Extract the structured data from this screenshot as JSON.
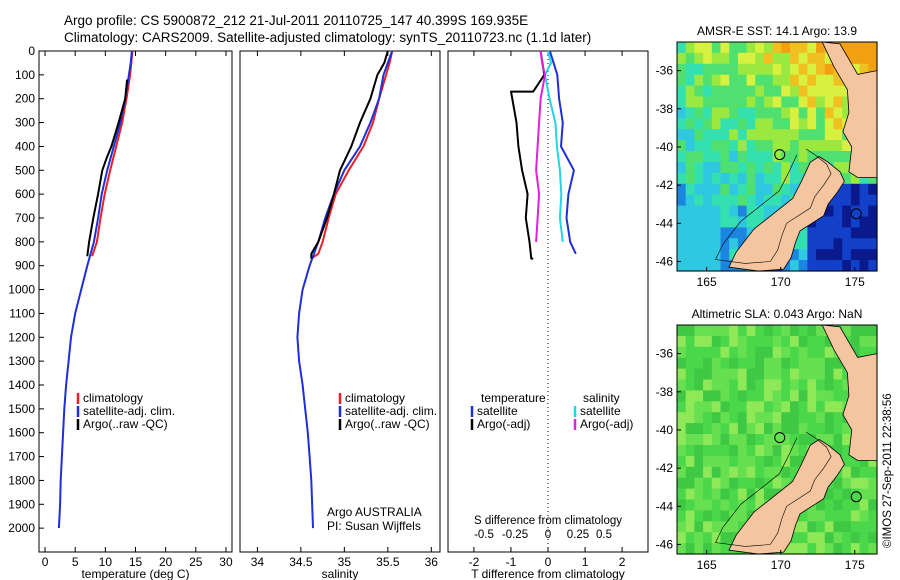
{
  "header": {
    "line1": "Argo profile: CS 5900872_212 21-Jul-2011 20110725_147 40.399S 169.935E",
    "line2": "Climatology: CARS2009. Satellite-adjusted climatology: synTS_20110723.nc (1.1d later)"
  },
  "credit": "©IMOS 27-Sep-2011 22:38:56",
  "colors": {
    "climatology": "#e8202a",
    "satellite": "#1f2fd8",
    "argo": "#000000",
    "satellite_s": "#22d4e4",
    "argo_s": "#e020e0"
  },
  "chart_data": [
    {
      "id": "temperature",
      "type": "line",
      "xlabel": "temperature (deg C)",
      "xlim": [
        -1,
        31
      ],
      "ylim": [
        2100,
        0
      ],
      "xticks": [
        "0",
        "5",
        "10",
        "15",
        "20",
        "25",
        "30"
      ],
      "xtick_values": [
        0,
        5,
        10,
        15,
        20,
        25,
        30
      ],
      "yticks": [
        "0",
        "100",
        "200",
        "300",
        "400",
        "500",
        "600",
        "700",
        "800",
        "900",
        "1000",
        "1100",
        "1200",
        "1300",
        "1400",
        "1500",
        "1600",
        "1700",
        "1800",
        "1900",
        "2000"
      ],
      "ytick_values": [
        0,
        100,
        200,
        300,
        400,
        500,
        600,
        700,
        800,
        900,
        1000,
        1100,
        1200,
        1300,
        1400,
        1500,
        1600,
        1700,
        1800,
        1900,
        2000
      ],
      "legend": [
        "climatology",
        "satellite-adj. clim.",
        "Argo(..raw -QC)"
      ],
      "series": [
        {
          "name": "climatology",
          "color": "#e8202a",
          "x": [
            14.5,
            14.3,
            14.1,
            13.5,
            12.8,
            11.8,
            10.8,
            9.9,
            9.2,
            8.6,
            7.8
          ],
          "y": [
            0,
            50,
            100,
            200,
            300,
            400,
            500,
            600,
            700,
            800,
            860
          ]
        },
        {
          "name": "satellite-adj. clim.",
          "color": "#1f2fd8",
          "x": [
            14.4,
            14.2,
            13.9,
            13.3,
            12.5,
            11.4,
            10.3,
            9.4,
            8.8,
            8.1,
            7.0,
            6.0,
            5.0,
            4.3,
            3.9,
            3.5,
            3.2,
            3.0,
            2.8,
            2.6,
            2.5,
            2.3
          ],
          "y": [
            0,
            50,
            100,
            200,
            300,
            400,
            500,
            600,
            700,
            800,
            900,
            1000,
            1100,
            1200,
            1300,
            1400,
            1500,
            1600,
            1700,
            1800,
            1900,
            2000
          ]
        },
        {
          "name": "Argo(..raw -QC)",
          "color": "#000000",
          "x": [
            13.6,
            13.3,
            12.2,
            11.0,
            10.2,
            9.5,
            8.8,
            8.0,
            7.3,
            7.0
          ],
          "y": [
            120,
            200,
            300,
            400,
            450,
            500,
            600,
            700,
            800,
            860
          ]
        }
      ]
    },
    {
      "id": "salinity",
      "type": "line",
      "xlabel": "salinity",
      "xlim": [
        33.8,
        36.1
      ],
      "ylim": [
        2100,
        0
      ],
      "xticks": [
        "34",
        "34.5",
        "35",
        "35.5",
        "36"
      ],
      "xtick_values": [
        34,
        34.5,
        35,
        35.5,
        36
      ],
      "legend": [
        "climatology",
        "satellite-adj. clim.",
        "Argo(..raw -QC)"
      ],
      "note_lines": [
        "Argo AUSTRALIA",
        "PI: Susan Wijffels"
      ],
      "series": [
        {
          "name": "climatology",
          "color": "#e8202a",
          "x": [
            35.55,
            35.52,
            35.48,
            35.4,
            35.33,
            35.22,
            35.05,
            34.9,
            34.82,
            34.75,
            34.7,
            34.62
          ],
          "y": [
            0,
            50,
            100,
            200,
            300,
            400,
            500,
            600,
            700,
            800,
            850,
            870
          ]
        },
        {
          "name": "satellite-adj. clim.",
          "color": "#1f2fd8",
          "x": [
            35.55,
            35.5,
            35.45,
            35.4,
            35.3,
            35.18,
            35.0,
            34.88,
            34.78,
            34.7,
            34.6,
            34.52,
            34.48,
            34.46,
            34.48,
            34.52,
            34.55,
            34.58,
            34.6,
            34.62,
            34.64
          ],
          "y": [
            0,
            50,
            100,
            200,
            300,
            400,
            500,
            600,
            700,
            800,
            900,
            1000,
            1100,
            1200,
            1300,
            1400,
            1500,
            1600,
            1700,
            1800,
            2000
          ]
        },
        {
          "name": "Argo(..raw -QC)",
          "color": "#000000",
          "x": [
            35.5,
            35.46,
            35.38,
            35.3,
            35.18,
            35.08,
            34.95,
            34.88,
            34.8,
            34.7,
            34.62,
            34.62
          ],
          "y": [
            0,
            50,
            100,
            200,
            300,
            400,
            500,
            600,
            700,
            800,
            850,
            870
          ]
        }
      ]
    },
    {
      "id": "difference",
      "type": "line",
      "xlabel": "T difference from climatology",
      "xlabel_top": "S difference from climatology",
      "xlim": [
        -2.7,
        2.7
      ],
      "ylim": [
        2100,
        0
      ],
      "xticks": [
        "-2",
        "-1",
        "0",
        "1",
        "2"
      ],
      "xtick_values": [
        -2,
        -1,
        0,
        1,
        2
      ],
      "s_xticks": [
        "-0.5",
        "-0.25",
        "0",
        "0.25",
        "0.5"
      ],
      "s_xtick_values": [
        -0.5,
        -0.25,
        0,
        0.25,
        0.5
      ],
      "s_scale": 4,
      "legend_temp": {
        "heading": "temperature",
        "items": [
          "satellite",
          "Argo(-adj)"
        ]
      },
      "legend_sal": {
        "heading": "salinity",
        "items": [
          "satellite",
          "Argo(-adj)"
        ]
      },
      "series": [
        {
          "name": "satellite",
          "variable": "temperature",
          "color": "#1f2fd8",
          "x": [
            0.05,
            0.15,
            0.25,
            0.3,
            0.4,
            0.35,
            0.7,
            0.55,
            0.5,
            0.6,
            0.75
          ],
          "y": [
            0,
            50,
            100,
            200,
            300,
            400,
            500,
            600,
            700,
            800,
            850
          ]
        },
        {
          "name": "Argo(-adj)",
          "variable": "temperature",
          "color": "#000000",
          "x": [
            -0.2,
            -0.1,
            -0.4,
            -1.0,
            -0.85,
            -0.8,
            -0.7,
            -0.55,
            -0.6,
            -0.5,
            -0.45,
            -0.4
          ],
          "y": [
            0,
            100,
            170,
            170,
            300,
            400,
            500,
            600,
            700,
            800,
            870,
            870
          ]
        },
        {
          "name": "satellite",
          "variable": "salinity",
          "color": "#22d4e4",
          "x": [
            0.0,
            0.02,
            -0.02,
            0.01,
            0.05,
            0.06,
            0.08,
            0.09,
            0.08,
            0.1
          ],
          "y": [
            0,
            50,
            100,
            200,
            300,
            400,
            500,
            600,
            700,
            800
          ]
        },
        {
          "name": "Argo(-adj)",
          "variable": "salinity",
          "color": "#e020e0",
          "x": [
            -0.05,
            -0.04,
            -0.02,
            -0.05,
            -0.06,
            -0.07,
            -0.08,
            -0.06,
            -0.07,
            -0.08
          ],
          "y": [
            0,
            50,
            100,
            200,
            300,
            400,
            500,
            600,
            700,
            800
          ]
        }
      ]
    },
    {
      "id": "sst-map",
      "type": "heatmap",
      "title": "AMSR-E SST: 14.1  Argo: 13.9",
      "xlim": [
        163,
        176.5
      ],
      "ylim": [
        -46.5,
        -34.5
      ],
      "xticks": [
        "165",
        "170",
        "175"
      ],
      "xtick_values": [
        165,
        170,
        175
      ],
      "yticks": [
        "-36",
        "-38",
        "-40",
        "-42",
        "-44",
        "-46"
      ],
      "ytick_values": [
        -36,
        -38,
        -40,
        -42,
        -44,
        -46
      ],
      "markers": [
        {
          "lon": 169.935,
          "lat": -40.4
        },
        {
          "lon": 175.1,
          "lat": -43.5
        }
      ]
    },
    {
      "id": "sla-map",
      "type": "heatmap",
      "title": "Altimetric SLA: 0.043  Argo: NaN",
      "xlim": [
        163,
        176.5
      ],
      "ylim": [
        -46.5,
        -34.5
      ],
      "xticks": [
        "165",
        "170",
        "175"
      ],
      "xtick_values": [
        165,
        170,
        175
      ],
      "yticks": [
        "-36",
        "-38",
        "-40",
        "-42",
        "-44",
        "-46"
      ],
      "ytick_values": [
        -36,
        -38,
        -40,
        -42,
        -44,
        -46
      ],
      "markers": [
        {
          "lon": 169.935,
          "lat": -40.4
        },
        {
          "lon": 175.1,
          "lat": -43.5
        }
      ]
    }
  ]
}
